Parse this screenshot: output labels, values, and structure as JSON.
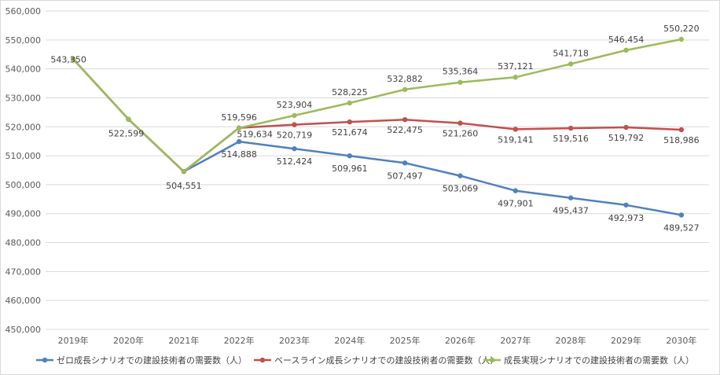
{
  "chart_data": {
    "type": "line",
    "title": "",
    "xlabel": "",
    "ylabel": "",
    "ylim": [
      450000,
      560000
    ],
    "yticks": [
      450000,
      460000,
      470000,
      480000,
      490000,
      500000,
      510000,
      520000,
      530000,
      540000,
      550000,
      560000
    ],
    "ytick_labels": [
      "450,000",
      "460,000",
      "470,000",
      "480,000",
      "490,000",
      "500,000",
      "510,000",
      "520,000",
      "530,000",
      "540,000",
      "550,000",
      "560,000"
    ],
    "categories": [
      "2019年",
      "2020年",
      "2021年",
      "2022年",
      "2023年",
      "2024年",
      "2025年",
      "2026年",
      "2027年",
      "2028年",
      "2029年",
      "2030年"
    ],
    "grid": "horizontal",
    "legend_position": "bottom",
    "series": [
      {
        "name": "ゼロ成長シナリオでの建設技術者の需要数（人）",
        "color": "#4f81bd",
        "values": [
          543350,
          522599,
          504551,
          514888,
          512424,
          509961,
          507497,
          503069,
          497901,
          495437,
          492973,
          489527
        ],
        "labels": [
          null,
          null,
          null,
          "514,888",
          "512,424",
          "509,961",
          "507,497",
          "503,069",
          "497,901",
          "495,437",
          "492,973",
          "489,527"
        ]
      },
      {
        "name": "ベースライン成長シナリオでの建設技術者の需要数（人）",
        "color": "#c0504d",
        "values": [
          543350,
          522599,
          504551,
          519634,
          520719,
          521674,
          522475,
          521260,
          519141,
          519516,
          519792,
          518986
        ],
        "labels": [
          null,
          null,
          null,
          "519,634",
          "520,719",
          "521,674",
          "522,475",
          "521,260",
          "519,141",
          "519,516",
          "519,792",
          "518,986"
        ]
      },
      {
        "name": "成長実現シナリオでの建設技術者の需要数（人）",
        "color": "#9bbb59",
        "values": [
          543350,
          522599,
          504551,
          519596,
          523904,
          528225,
          532882,
          535364,
          537121,
          541718,
          546454,
          550220
        ],
        "labels": [
          "543,350",
          "522,599",
          "504,551",
          "519,596",
          "523,904",
          "528,225",
          "532,882",
          "535,364",
          "537,121",
          "541,718",
          "546,454",
          "550,220"
        ]
      }
    ]
  }
}
